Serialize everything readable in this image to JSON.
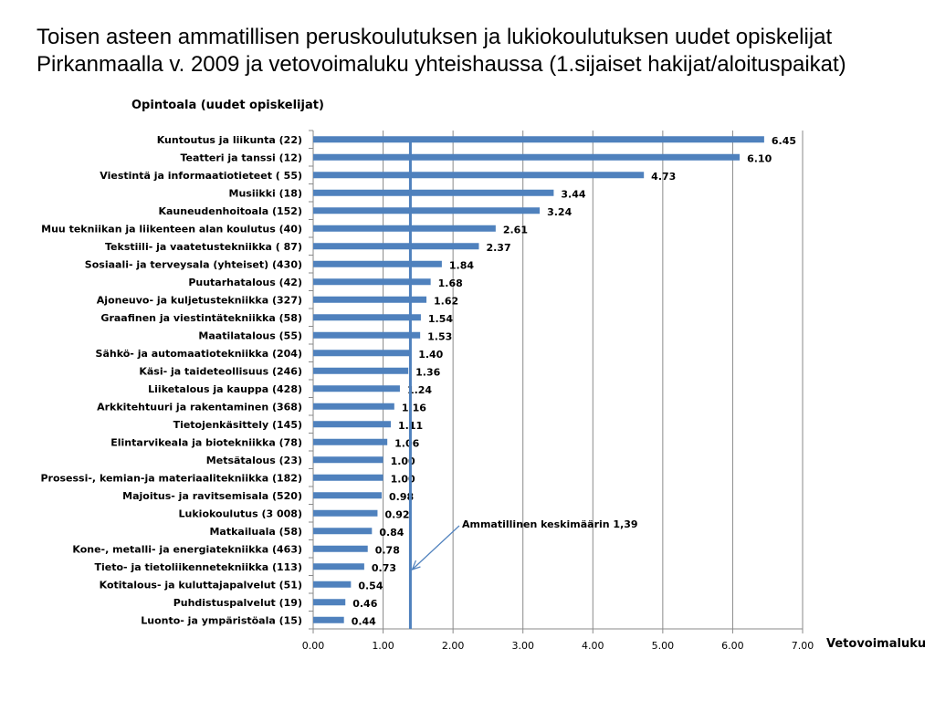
{
  "slide": {
    "title_line1": "Toisen asteen ammatillisen peruskoulutuksen ja lukiokoulutuksen uudet opiskelijat",
    "title_line2": "Pirkanmaalla v. 2009 ja vetovoimaluku yhteishaussa (1.sijaiset hakijat/aloituspaikat)"
  },
  "chart_data": {
    "type": "bar",
    "orientation": "horizontal",
    "title": "Opintoala (uudet opiskelijat)",
    "xlabel": "Vetovoimaluku",
    "xlim": [
      0,
      7
    ],
    "xticks": [
      "0.00",
      "1.00",
      "2.00",
      "3.00",
      "4.00",
      "5.00",
      "6.00",
      "7.00"
    ],
    "grid": true,
    "bar_color": "#4F81BD",
    "categories": [
      "Kuntoutus ja liikunta (22)",
      "Teatteri ja tanssi (12)",
      "Viestintä ja informaatiotieteet ( 55)",
      "Musiikki (18)",
      "Kauneudenhoitoala (152)",
      "Muu tekniikan ja liikenteen alan koulutus (40)",
      "Tekstiili- ja vaatetustekniikka ( 87)",
      "Sosiaali- ja terveysala (yhteiset) (430)",
      "Puutarhatalous (42)",
      "Ajoneuvo- ja kuljetustekniikka (327)",
      "Graafinen ja viestintätekniikka (58)",
      "Maatilatalous (55)",
      "Sähkö- ja automaatiotekniikka (204)",
      "Käsi- ja taideteollisuus (246)",
      "Liiketalous ja kauppa (428)",
      "Arkkitehtuuri ja rakentaminen (368)",
      "Tietojenkäsittely (145)",
      "Elintarvikeala ja biotekniikka (78)",
      "Metsätalous (23)",
      "Prosessi-, kemian-ja materiaalitekniikka (182)",
      "Majoitus- ja ravitsemisala (520)",
      "Lukiokoulutus (3 008)",
      "Matkailuala (58)",
      "Kone-, metalli- ja energiatekniikka (463)",
      "Tieto- ja tietoliikennetekniikka (113)",
      "Kotitalous- ja kuluttajapalvelut (51)",
      "Puhdistuspalvelut (19)",
      "Luonto- ja ympäristöala (15)"
    ],
    "values": [
      6.45,
      6.1,
      4.73,
      3.44,
      3.24,
      2.61,
      2.37,
      1.84,
      1.68,
      1.62,
      1.54,
      1.53,
      1.4,
      1.36,
      1.24,
      1.16,
      1.11,
      1.06,
      1.0,
      1.0,
      0.98,
      0.92,
      0.84,
      0.78,
      0.73,
      0.54,
      0.46,
      0.44
    ],
    "value_labels": [
      "6.45",
      "6.10",
      "4.73",
      "3.44",
      "3.24",
      "2.61",
      "2.37",
      "1.84",
      "1.68",
      "1.62",
      "1.54",
      "1.53",
      "1.40",
      "1.36",
      "1.24",
      "1.16",
      "1.11",
      "1.06",
      "1.00",
      "1.00",
      "0.98",
      "0.92",
      "0.84",
      "0.78",
      "0.73",
      "0.54",
      "0.46",
      "0.44"
    ],
    "reference_line": {
      "value": 1.39,
      "color": "#4F81BD",
      "annotation": "Ammatillinen keskimäärin 1,39"
    }
  }
}
